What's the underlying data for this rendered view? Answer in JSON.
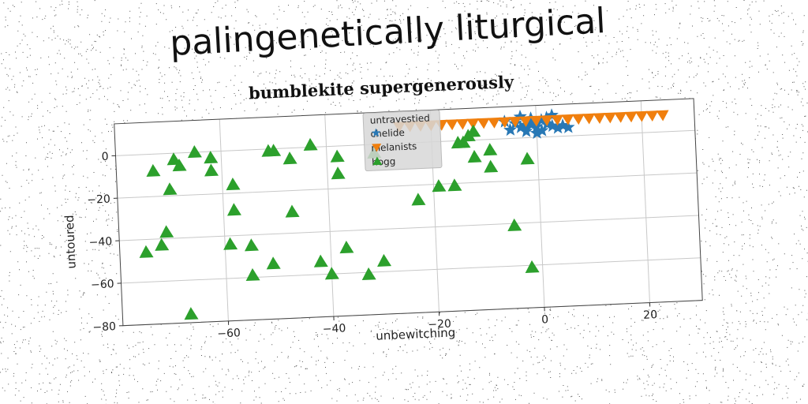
{
  "title": "palingenetically liturgical",
  "chart_data": {
    "type": "scatter",
    "title": "bumblekite supergenerously",
    "xlabel": "unbewitching",
    "ylabel": "untoured",
    "xlim": [
      -80,
      30
    ],
    "ylim": [
      -80,
      15
    ],
    "xticks": [
      -60,
      -40,
      -20,
      0,
      20
    ],
    "yticks": [
      0,
      -20,
      -40,
      -60,
      -80
    ],
    "grid": true,
    "legend": {
      "title": "untravestied",
      "position": "top-center"
    },
    "series": [
      {
        "name": "chelide",
        "marker": "star",
        "color": "#2878b5",
        "points": [
          [
            -6,
            8
          ],
          [
            -4,
            7
          ],
          [
            -3,
            10
          ],
          [
            -2,
            6
          ],
          [
            -1,
            9
          ],
          [
            0,
            5
          ],
          [
            1,
            8
          ],
          [
            2,
            6
          ],
          [
            3,
            10
          ],
          [
            4,
            4
          ],
          [
            -5,
            4
          ],
          [
            -2,
            3
          ],
          [
            0,
            2
          ],
          [
            1,
            3
          ],
          [
            3,
            5
          ],
          [
            5,
            5
          ],
          [
            -3,
            5
          ],
          [
            -1,
            6
          ],
          [
            2,
            9
          ],
          [
            6,
            4
          ]
        ]
      },
      {
        "name": "melanists",
        "marker": "triangle-down",
        "color": "#f07f0e",
        "points": [
          [
            -26,
            8
          ],
          [
            -24,
            8
          ],
          [
            -22,
            8
          ],
          [
            -20,
            8
          ],
          [
            -18,
            8
          ],
          [
            -16,
            8
          ],
          [
            -14,
            8
          ],
          [
            -12,
            8
          ],
          [
            -10,
            8
          ],
          [
            -8,
            8
          ],
          [
            -6,
            8
          ],
          [
            -4,
            8
          ],
          [
            -2,
            8
          ],
          [
            0,
            8
          ],
          [
            2,
            8
          ],
          [
            4,
            8
          ],
          [
            6,
            8
          ],
          [
            8,
            8
          ],
          [
            10,
            8
          ],
          [
            12,
            8
          ],
          [
            14,
            8
          ],
          [
            16,
            8
          ],
          [
            18,
            8
          ],
          [
            20,
            8
          ],
          [
            22,
            8
          ],
          [
            24,
            8
          ]
        ]
      },
      {
        "name": "hogg",
        "marker": "triangle",
        "color": "#2ca02c",
        "points": [
          [
            -69,
            -3
          ],
          [
            -65,
            0
          ],
          [
            -62,
            -3
          ],
          [
            -73,
            -8
          ],
          [
            -68,
            -6
          ],
          [
            -62,
            -9
          ],
          [
            -58,
            -16
          ],
          [
            -70,
            -17
          ],
          [
            -58,
            -28
          ],
          [
            -71,
            -37
          ],
          [
            -72,
            -43
          ],
          [
            -75,
            -46
          ],
          [
            -59,
            -44
          ],
          [
            -55,
            -45
          ],
          [
            -51,
            -1
          ],
          [
            -50,
            -1
          ],
          [
            -47,
            -5
          ],
          [
            -43,
            1
          ],
          [
            -38,
            -5
          ],
          [
            -38,
            -13
          ],
          [
            -31,
            -4
          ],
          [
            -47,
            -30
          ],
          [
            -51,
            -54
          ],
          [
            -55,
            -59
          ],
          [
            -42,
            -54
          ],
          [
            -37,
            -48
          ],
          [
            -40,
            -60
          ],
          [
            -33,
            -61
          ],
          [
            -30,
            -55
          ],
          [
            -67,
            -76
          ],
          [
            -23,
            -27
          ],
          [
            -19,
            -21
          ],
          [
            -16,
            -21
          ],
          [
            -14,
            -1
          ],
          [
            -12,
            -8
          ],
          [
            -9,
            -5
          ],
          [
            -9,
            -13
          ],
          [
            -5,
            -41
          ],
          [
            -2,
            -10
          ],
          [
            -2,
            -61
          ],
          [
            -13,
            2
          ],
          [
            -12,
            4
          ],
          [
            -15,
            -1
          ]
        ]
      }
    ]
  }
}
